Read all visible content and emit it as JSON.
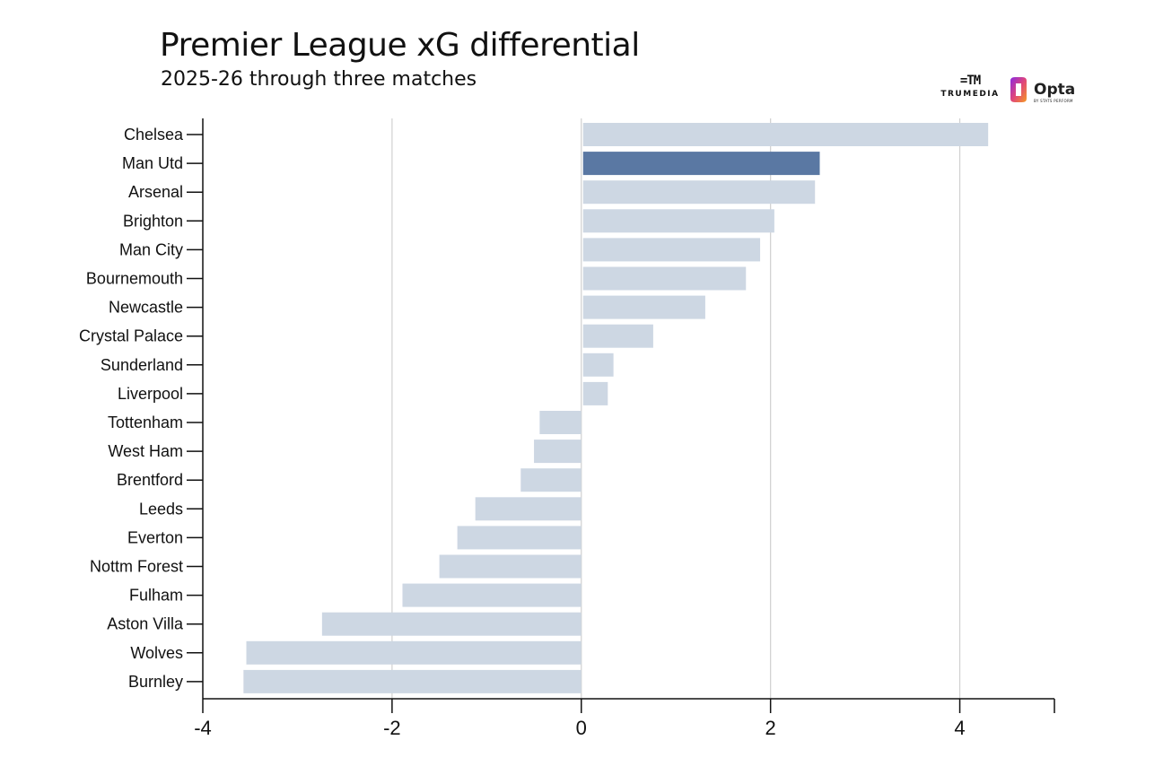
{
  "title": "Premier League xG differential",
  "subtitle": "2025-26 through three matches",
  "logos": {
    "trumedia_mark": "=TM",
    "trumedia_word": "TRUMEDIA",
    "opta_word": "Opta",
    "opta_sub": "BY STATS PERFORM"
  },
  "colors": {
    "bar_default": "#cdd7e3",
    "bar_highlight": "#5a78a3",
    "grid": "#d0d0d0",
    "axis": "#111111"
  },
  "chart_data": {
    "type": "bar",
    "orientation": "horizontal",
    "title": "Premier League xG differential",
    "subtitle": "2025-26 through three matches",
    "xlabel": "",
    "ylabel": "",
    "xlim": [
      -4,
      5
    ],
    "x_ticks": [
      -4,
      -2,
      0,
      2,
      4
    ],
    "grid": "vertical at ticks",
    "highlight": "Man Utd",
    "categories": [
      "Chelsea",
      "Man Utd",
      "Arsenal",
      "Brighton",
      "Man City",
      "Bournemouth",
      "Newcastle",
      "Crystal Palace",
      "Sunderland",
      "Liverpool",
      "Tottenham",
      "West Ham",
      "Brentford",
      "Leeds",
      "Everton",
      "Nottm Forest",
      "Fulham",
      "Aston Villa",
      "Wolves",
      "Burnley"
    ],
    "values": [
      4.3,
      2.52,
      2.47,
      2.04,
      1.89,
      1.74,
      1.31,
      0.76,
      0.34,
      0.28,
      -0.44,
      -0.5,
      -0.64,
      -1.12,
      -1.31,
      -1.5,
      -1.89,
      -2.74,
      -3.54,
      -3.57
    ]
  }
}
